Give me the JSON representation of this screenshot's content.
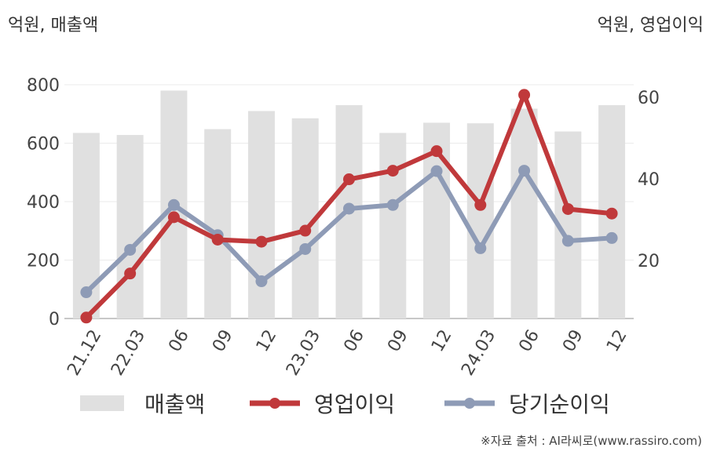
{
  "units": {
    "left": "억원, 매출액",
    "right": "억원, 영업이익"
  },
  "chart_data": {
    "type": "bar+line",
    "categories": [
      "21.12",
      "22.03",
      "06",
      "09",
      "12",
      "23.03",
      "06",
      "09",
      "12",
      "24.03",
      "06",
      "09",
      "12"
    ],
    "y_left": {
      "ticks": [
        0,
        200,
        400,
        600,
        800
      ],
      "lim": [
        0,
        800
      ]
    },
    "y_right": {
      "ticks": [
        20,
        40,
        60
      ]
    },
    "series": [
      {
        "name": "매출액",
        "type": "bar",
        "axis": "left",
        "color": "#e0e0e0",
        "values": [
          635,
          628,
          780,
          648,
          710,
          685,
          730,
          635,
          670,
          668,
          718,
          640,
          730
        ]
      },
      {
        "name": "영업이익",
        "type": "line",
        "axis": "right",
        "color": "#c0393b",
        "values": [
          6.0,
          16.8,
          30.6,
          25.1,
          24.6,
          27.3,
          39.9,
          42.0,
          46.8,
          33.6,
          60.6,
          32.6,
          31.5
        ]
      },
      {
        "name": "당기순이익",
        "type": "line",
        "axis": "right",
        "color": "#8e9bb6",
        "values": [
          12.2,
          22.6,
          33.6,
          26.2,
          14.9,
          22.8,
          32.7,
          33.6,
          41.9,
          23.0,
          42.0,
          24.8,
          25.5
        ]
      }
    ]
  },
  "source": "※자료 출처 : AI라씨로(www.rassiro.com)"
}
